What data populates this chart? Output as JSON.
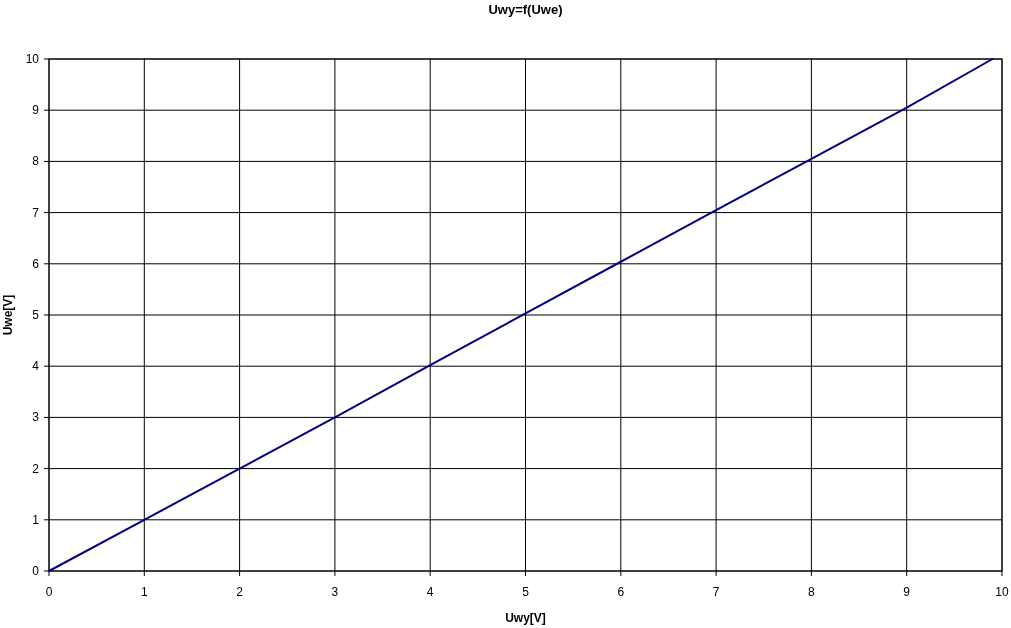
{
  "chart_data": {
    "type": "line",
    "title": "Uwy=f(Uwe)",
    "xlabel": "Uwy[V]",
    "ylabel": "Uwe[V]",
    "x": [
      0,
      1,
      2,
      3,
      4,
      5,
      6,
      7,
      8,
      9,
      9.9
    ],
    "series": [
      {
        "color": "#000080",
        "values": [
          0,
          1,
          2,
          3,
          4.02,
          5.03,
          6.04,
          7.05,
          8.05,
          9.05,
          10
        ]
      }
    ],
    "xlim": [
      0,
      10
    ],
    "ylim": [
      0,
      10
    ],
    "xticks": [
      0,
      1,
      2,
      3,
      4,
      5,
      6,
      7,
      8,
      9,
      10
    ],
    "yticks": [
      0,
      1,
      2,
      3,
      4,
      5,
      6,
      7,
      8,
      9,
      10
    ],
    "grid": true
  }
}
